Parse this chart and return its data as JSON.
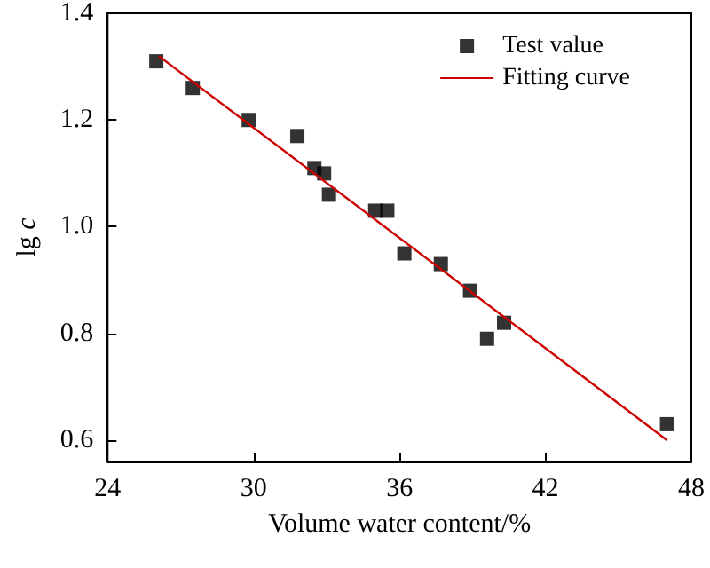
{
  "chart_data": {
    "type": "scatter",
    "xlabel": "Volume water content/%",
    "ylabel": "lg $_{}$c",
    "series": [
      {
        "name": "Test value",
        "color": "#000000",
        "marker": "square",
        "x": [
          26.0,
          27.5,
          29.8,
          31.8,
          32.5,
          32.9,
          33.1,
          35.0,
          35.5,
          36.2,
          37.7,
          38.9,
          39.6,
          40.3,
          47.0
        ],
        "values": [
          1.31,
          1.26,
          1.2,
          1.17,
          1.11,
          1.1,
          1.06,
          1.03,
          1.03,
          0.95,
          0.93,
          0.88,
          0.79,
          0.82,
          0.63
        ]
      },
      {
        "name": "Fitting curve",
        "type": "line",
        "color": "#cc0000",
        "marker": "none",
        "x": [
          26.1,
          47.0
        ],
        "values": [
          1.32,
          0.6
        ]
      }
    ],
    "xlim": [
      24,
      48
    ],
    "xticks": [
      24,
      30,
      36,
      42,
      48
    ],
    "ylim": [
      0.56,
      1.4
    ],
    "yticks": [
      {
        "value": 0.6,
        "label": "0.6"
      },
      {
        "value": 0.8,
        "label": "0.8"
      },
      {
        "value": 1.0,
        "label": "1.0"
      },
      {
        "value": 1.2,
        "label": "1.2"
      },
      {
        "value": 1.4,
        "label": "1.4"
      }
    ],
    "grid": false,
    "legend": "top right"
  }
}
